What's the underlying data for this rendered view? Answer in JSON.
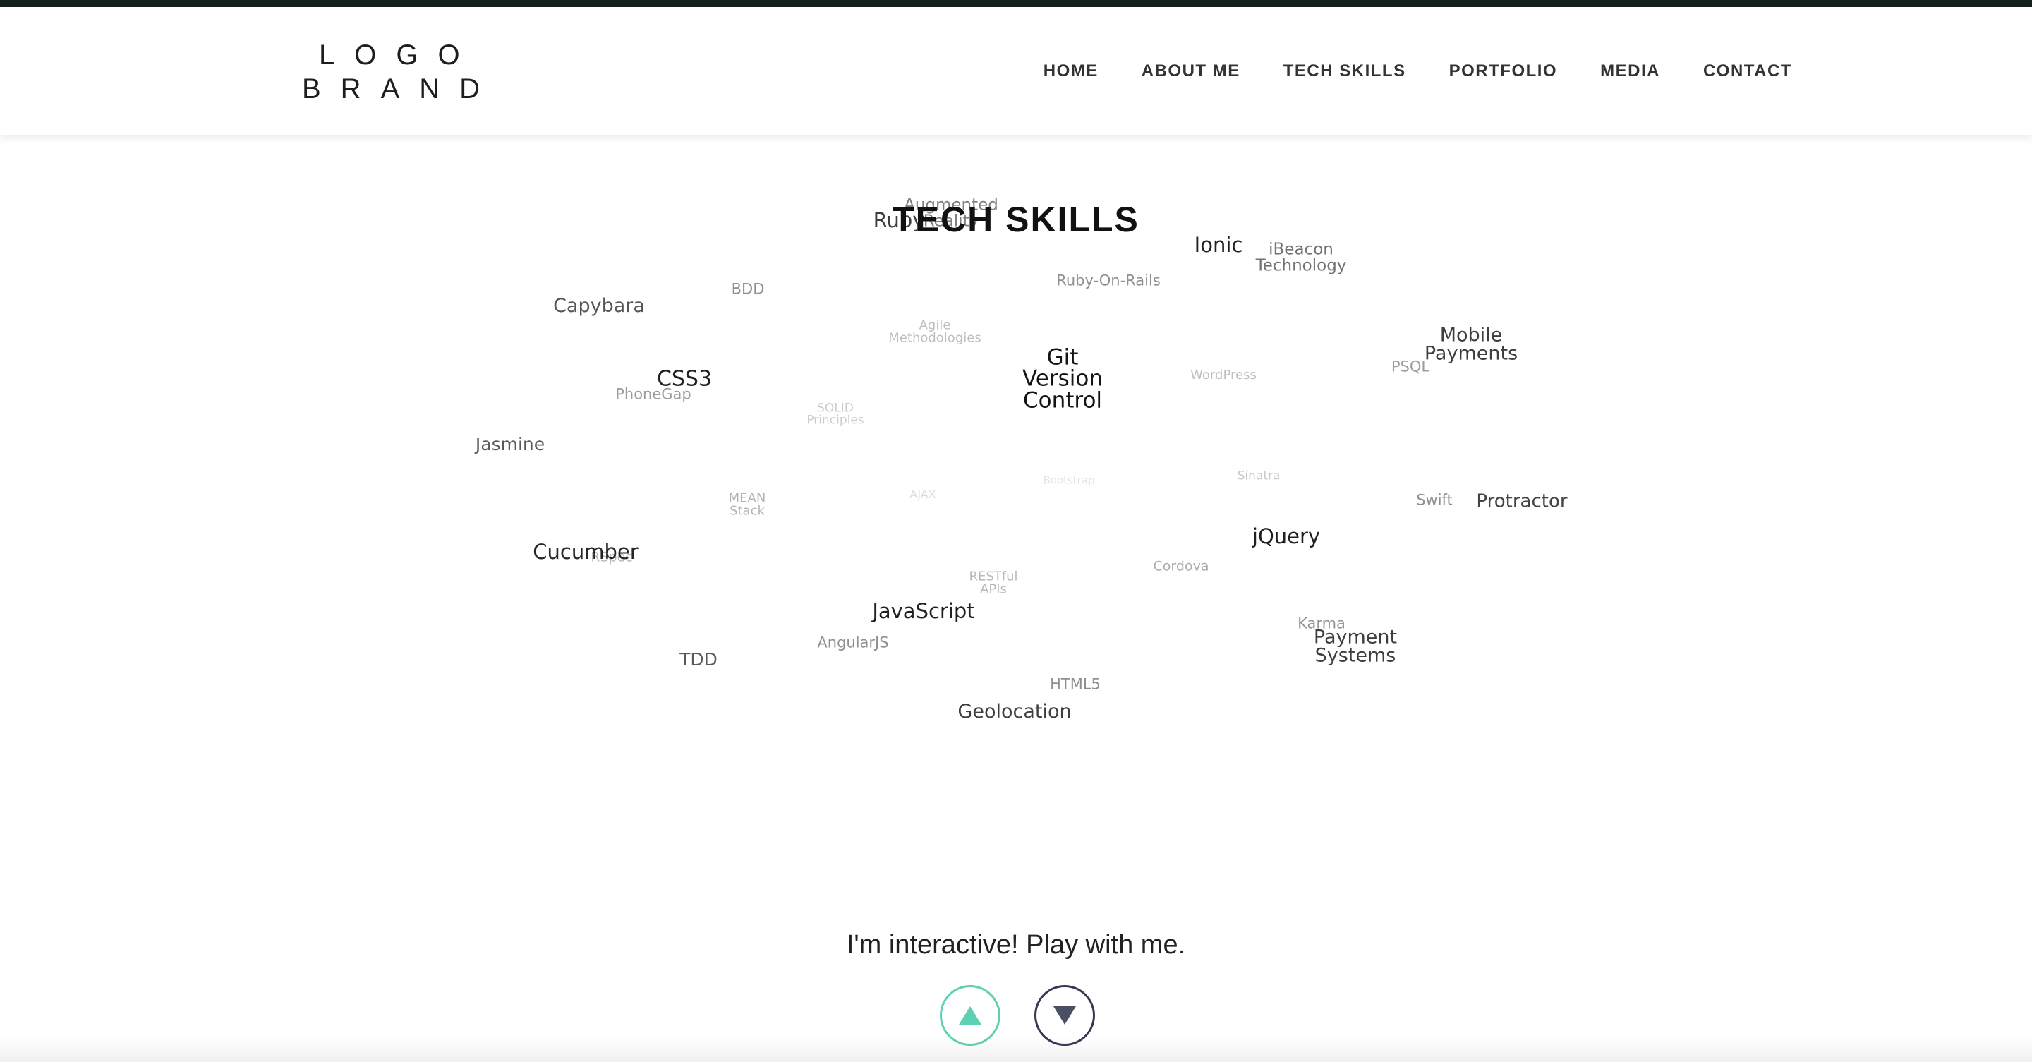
{
  "header": {
    "logo_line1": "LOGO",
    "logo_line2": "BRAND",
    "nav": [
      "HOME",
      "ABOUT ME",
      "TECH SKILLS",
      "PORTFOLIO",
      "MEDIA",
      "CONTACT"
    ]
  },
  "main": {
    "title": "TECH SKILLS",
    "subtitle": "I'm interactive! Play with me.",
    "up_button_label": "scroll up",
    "down_button_label": "scroll down"
  },
  "colors": {
    "topbar": "#15201e",
    "accent_up": "#5fd0b4",
    "accent_down": "#343a52"
  },
  "tag_cloud": [
    {
      "text": "Augmented\nReality"
    },
    {
      "text": "Ruby"
    },
    {
      "text": "Ionic"
    },
    {
      "text": "iBeacon\nTechnology"
    },
    {
      "text": "BDD"
    },
    {
      "text": "Ruby-On-Rails"
    },
    {
      "text": "Capybara"
    },
    {
      "text": "Agile\nMethodologies"
    },
    {
      "text": "Mobile\nPayments"
    },
    {
      "text": "Git\nVersion\nControl"
    },
    {
      "text": "PSQL"
    },
    {
      "text": "CSS3"
    },
    {
      "text": "WordPress"
    },
    {
      "text": "PhoneGap"
    },
    {
      "text": "SOLID\nPrinciples"
    },
    {
      "text": "Jasmine"
    },
    {
      "text": "Sinatra"
    },
    {
      "text": "Bootstrap"
    },
    {
      "text": "MEAN\nStack"
    },
    {
      "text": "AJAX"
    },
    {
      "text": "Swift"
    },
    {
      "text": "Protractor"
    },
    {
      "text": "jQuery"
    },
    {
      "text": "RSpec"
    },
    {
      "text": "Cucumber"
    },
    {
      "text": "Cordova"
    },
    {
      "text": "RESTful\nAPIs"
    },
    {
      "text": "JavaScript"
    },
    {
      "text": "Karma"
    },
    {
      "text": "Payment\nSystems"
    },
    {
      "text": "AngularJS"
    },
    {
      "text": "TDD"
    },
    {
      "text": "HTML5"
    },
    {
      "text": "Geolocation"
    }
  ]
}
